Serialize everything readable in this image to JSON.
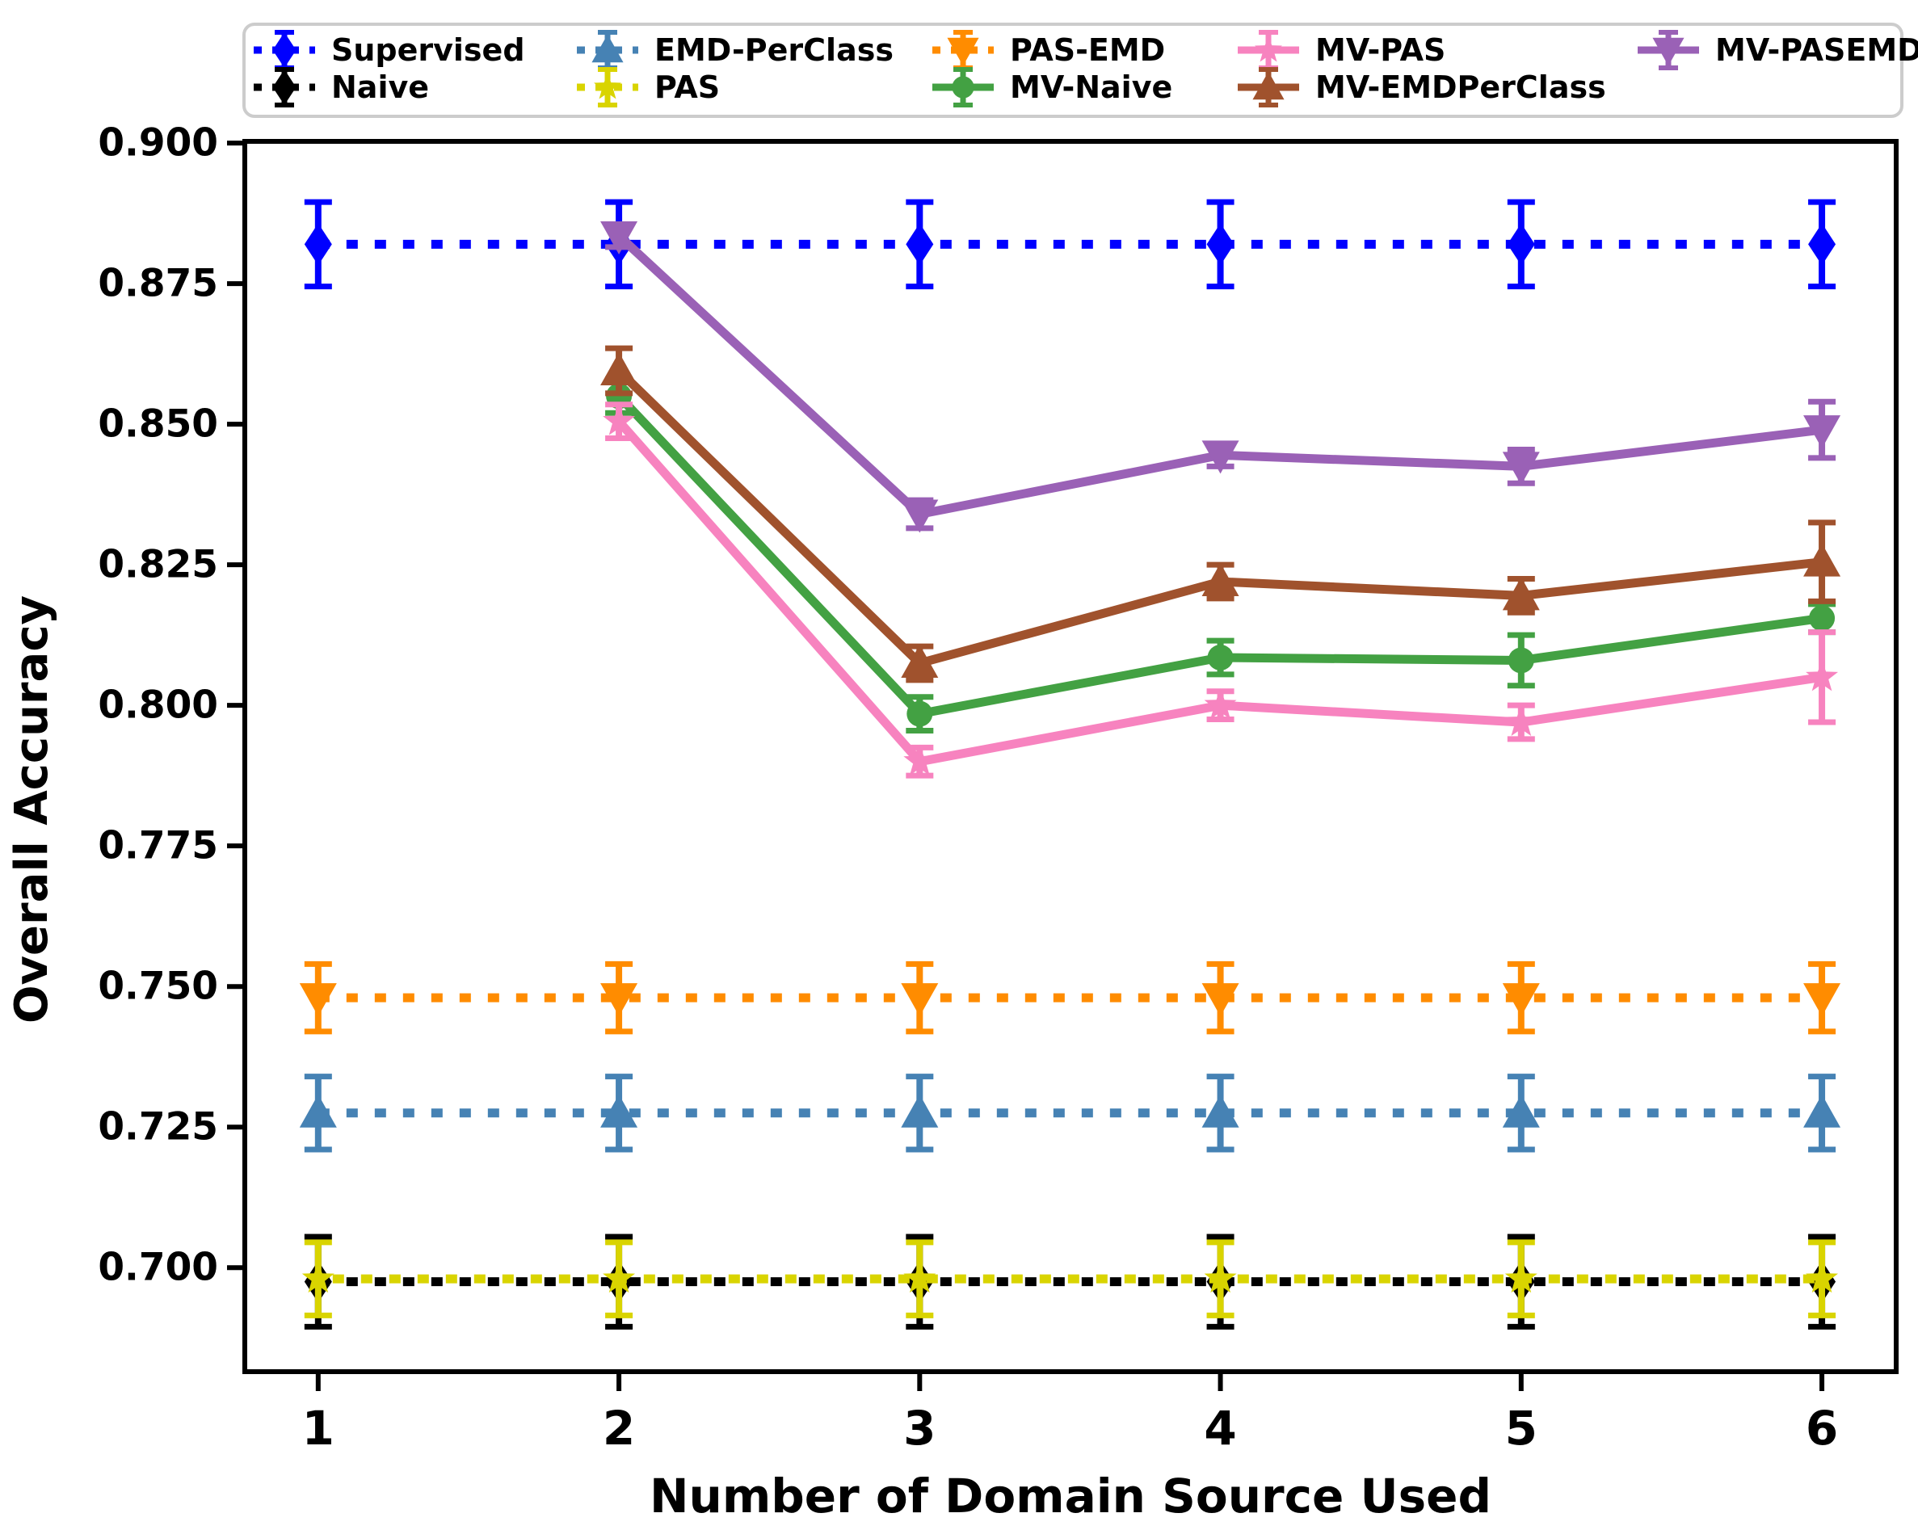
{
  "chart_data": {
    "type": "line",
    "title": "",
    "xlabel": "Number of Domain Source Used",
    "ylabel": "Overall Accuracy",
    "x_tick_labels": [
      "1",
      "2",
      "3",
      "4",
      "5",
      "6"
    ],
    "x_tick_values": [
      1,
      2,
      3,
      4,
      5,
      6
    ],
    "y_tick_labels": [
      "0.700",
      "0.725",
      "0.750",
      "0.775",
      "0.800",
      "0.825",
      "0.850",
      "0.875",
      "0.900"
    ],
    "y_tick_values": [
      0.7,
      0.725,
      0.75,
      0.775,
      0.8,
      0.825,
      0.85,
      0.875,
      0.9
    ],
    "xlim": [
      0.756,
      6.247
    ],
    "ylim": [
      0.6815,
      0.9003
    ],
    "grid": false,
    "legend": {
      "position": "top",
      "rows": 2,
      "columns": 5
    },
    "series": [
      {
        "name": "Supervised",
        "color": "#0000ff",
        "linestyle": "dotted",
        "marker": "diamond",
        "x": [
          1,
          2,
          3,
          4,
          5,
          6
        ],
        "y": [
          0.882,
          0.882,
          0.882,
          0.882,
          0.882,
          0.882
        ],
        "yerr": [
          0.0075,
          0.0075,
          0.0075,
          0.0075,
          0.0075,
          0.0075
        ]
      },
      {
        "name": "Naive",
        "color": "#000000",
        "linestyle": "dotted",
        "marker": "diamond",
        "x": [
          1,
          2,
          3,
          4,
          5,
          6
        ],
        "y": [
          0.6975,
          0.6975,
          0.6975,
          0.6975,
          0.6975,
          0.6975
        ],
        "yerr": [
          0.008,
          0.008,
          0.008,
          0.008,
          0.008,
          0.008
        ]
      },
      {
        "name": "EMD-PerClass",
        "color": "#4682b4",
        "linestyle": "dotted",
        "marker": "triangle-up",
        "x": [
          1,
          2,
          3,
          4,
          5,
          6
        ],
        "y": [
          0.7275,
          0.7275,
          0.7275,
          0.7275,
          0.7275,
          0.7275
        ],
        "yerr": [
          0.0065,
          0.0065,
          0.0065,
          0.0065,
          0.0065,
          0.0065
        ]
      },
      {
        "name": "PAS",
        "color": "#d9d400",
        "linestyle": "dotted",
        "marker": "star",
        "x": [
          1,
          2,
          3,
          4,
          5,
          6
        ],
        "y": [
          0.698,
          0.698,
          0.698,
          0.698,
          0.698,
          0.698
        ],
        "yerr": [
          0.0065,
          0.0065,
          0.0065,
          0.0065,
          0.0065,
          0.0065
        ]
      },
      {
        "name": "PAS-EMD",
        "color": "#ff8c00",
        "linestyle": "dotted",
        "marker": "triangle-down",
        "x": [
          1,
          2,
          3,
          4,
          5,
          6
        ],
        "y": [
          0.748,
          0.748,
          0.748,
          0.748,
          0.748,
          0.748
        ],
        "yerr": [
          0.006,
          0.006,
          0.006,
          0.006,
          0.006,
          0.006
        ]
      },
      {
        "name": "MV-Naive",
        "color": "#43a143",
        "linestyle": "solid",
        "marker": "circle",
        "x": [
          2,
          3,
          4,
          5,
          6
        ],
        "y": [
          0.855,
          0.7985,
          0.8085,
          0.808,
          0.8155
        ],
        "yerr": [
          0.003,
          0.003,
          0.003,
          0.0045,
          0.0025
        ]
      },
      {
        "name": "MV-PAS",
        "color": "#f783bf",
        "linestyle": "solid",
        "marker": "star",
        "x": [
          2,
          3,
          4,
          5,
          6
        ],
        "y": [
          0.8505,
          0.79,
          0.8,
          0.797,
          0.805
        ],
        "yerr": [
          0.003,
          0.0025,
          0.0025,
          0.003,
          0.008
        ]
      },
      {
        "name": "MV-EMDPerClass",
        "color": "#a0522d",
        "linestyle": "solid",
        "marker": "triangle-up",
        "x": [
          2,
          3,
          4,
          5,
          6
        ],
        "y": [
          0.8595,
          0.8075,
          0.822,
          0.8195,
          0.8255
        ],
        "yerr": [
          0.004,
          0.003,
          0.003,
          0.003,
          0.007
        ]
      },
      {
        "name": "MV-PASEMD",
        "color": "#9a61b6",
        "linestyle": "solid",
        "marker": "triangle-down",
        "x": [
          2,
          3,
          4,
          5,
          6
        ],
        "y": [
          0.8835,
          0.834,
          0.8445,
          0.8425,
          0.849
        ],
        "yerr": [
          0.002,
          0.0025,
          0.002,
          0.003,
          0.005
        ]
      }
    ]
  }
}
